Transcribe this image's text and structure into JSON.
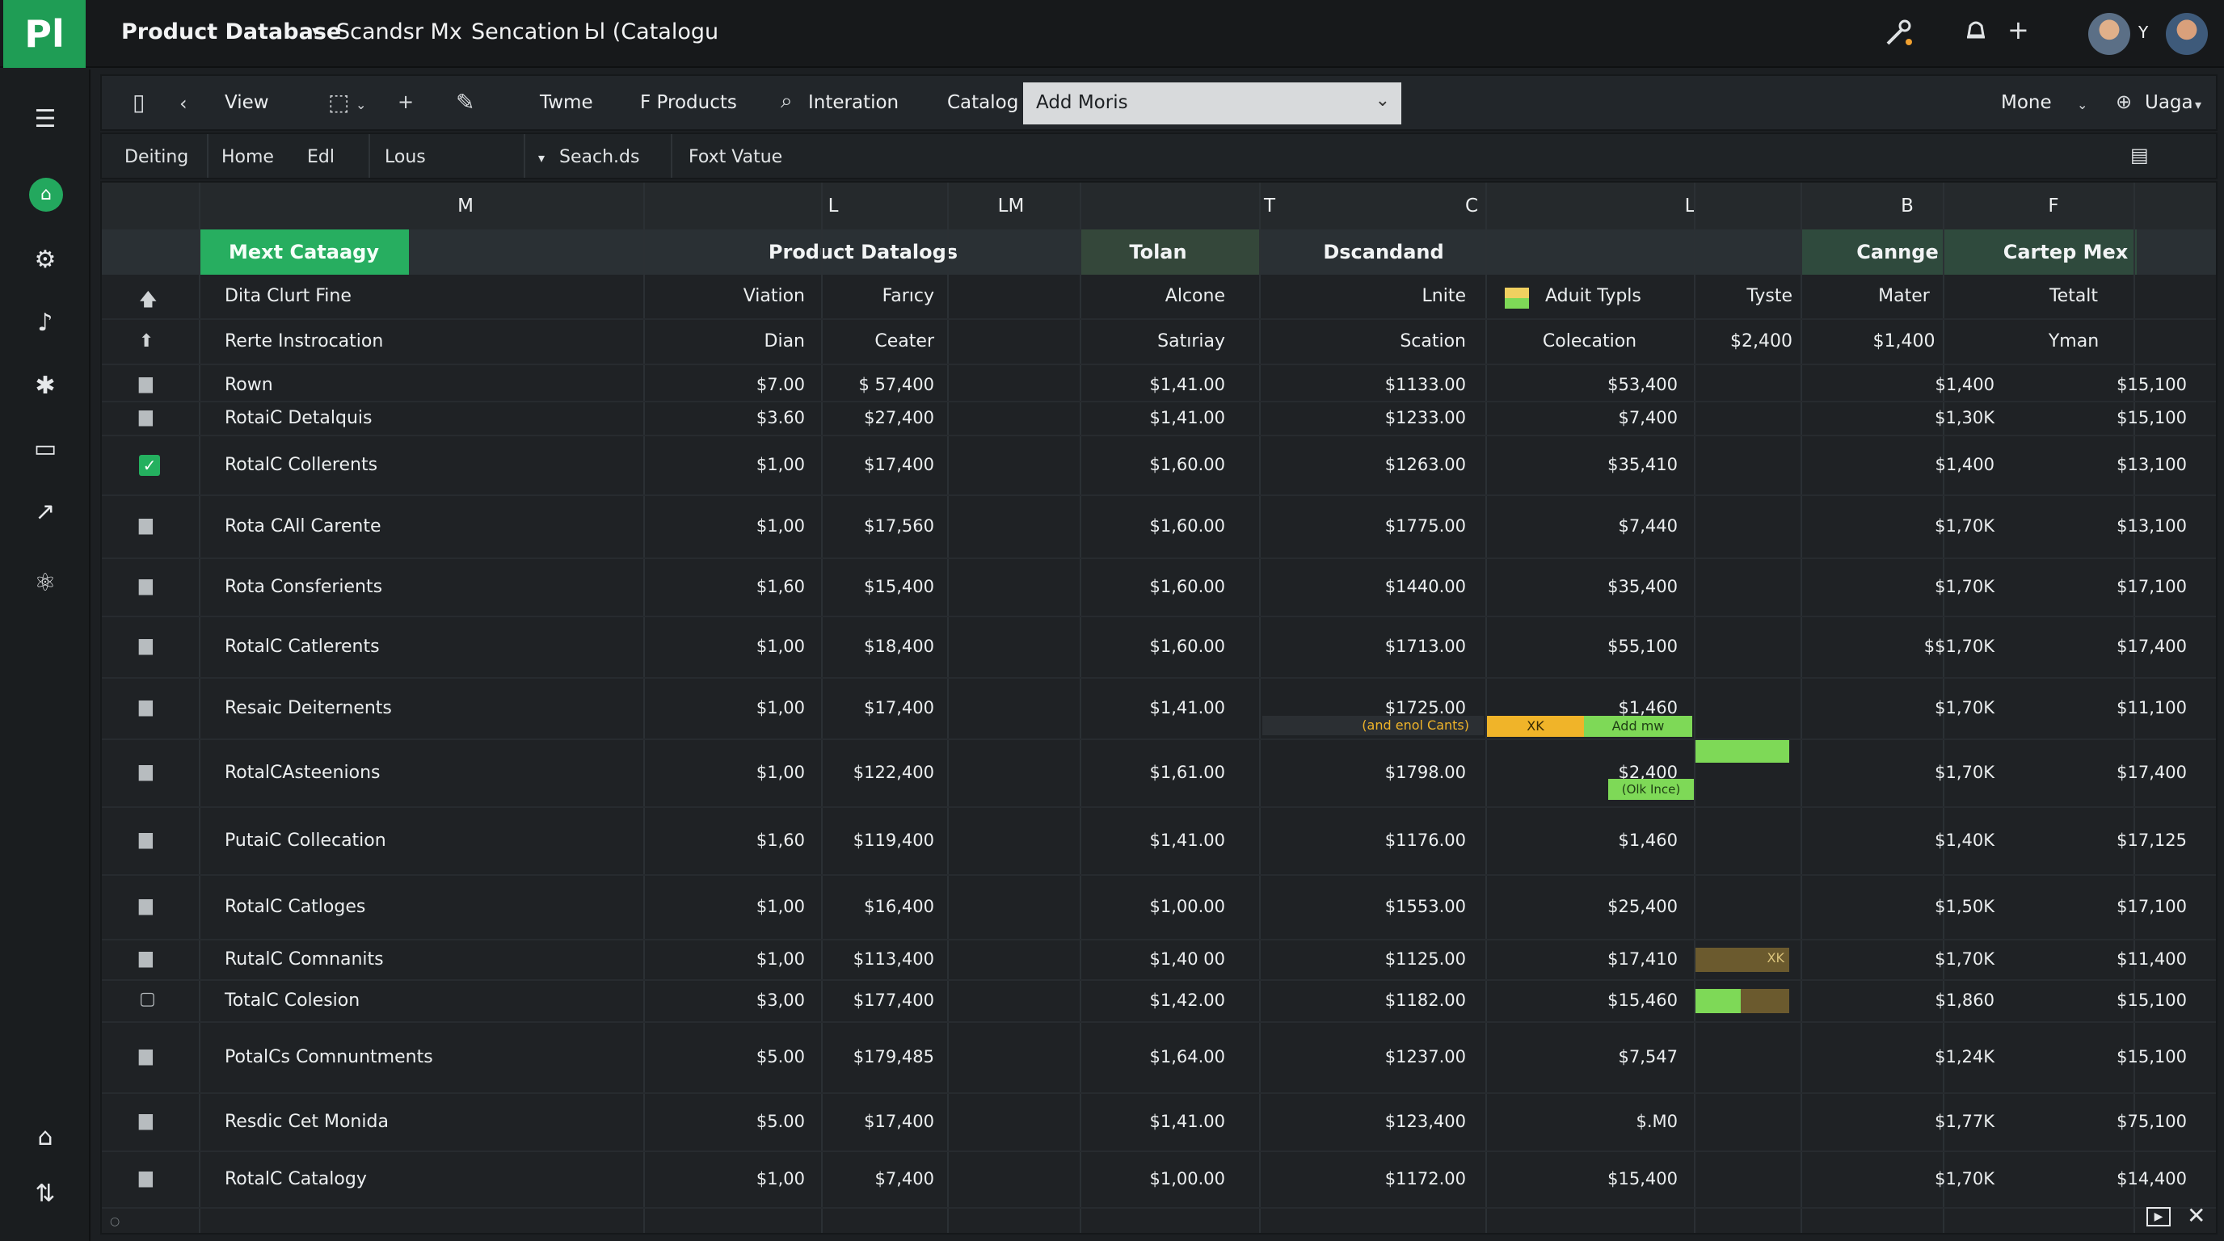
{
  "app": {
    "logo": "Pl",
    "title_items": [
      "Product Database",
      "Scandsr Mx",
      "Sencation",
      "Ꮟl (Catalogu"
    ],
    "title_dropdown_icon": "caret-down-icon"
  },
  "top_right": {
    "icons": [
      "tools-icon",
      "bell-icon",
      "plus-icon"
    ],
    "avatar_caret": "Y"
  },
  "toolbar": {
    "view": "View",
    "twme": "Twme",
    "fproducts": "F Products",
    "interation": "Interation",
    "catalog_label": "Catalog",
    "catalog_value": "Add Moris",
    "mone": "Mone",
    "uaga": "Uaga"
  },
  "subnav": {
    "items": [
      "Deiting",
      "Home",
      "Edl",
      "Lous",
      "Seach.ds",
      "Foxt Vatue"
    ]
  },
  "columns": {
    "letters": [
      "M",
      "L",
      "LM",
      "T",
      "C",
      "L",
      "B",
      "F"
    ]
  },
  "groups": {
    "g1": "Mext Cataagy",
    "g2": "Product Datalogs",
    "g3": "Tolan",
    "g4": "Dscandand",
    "g5": "Cannge",
    "g6": "Cartep Mex"
  },
  "subheaders": [
    {
      "name": "Dita Clurt Fine",
      "c1": "Viation",
      "c2": "Farıcy",
      "c3": "Alcone",
      "c4": "Lnite",
      "c5": "Aduit Typls",
      "c6": "Tyste",
      "c7": "Mater",
      "c8": "Tetalt"
    },
    {
      "name": "Rerte Instrocation",
      "c1": "Dian",
      "c2": "Ceater",
      "c3": "Satıriay",
      "c4": "Scation",
      "c5": "Colecation",
      "c6": "$2,400",
      "c7": "$1,400",
      "c8": "Yman"
    }
  ],
  "rows": [
    {
      "name": "Rown",
      "c1": "$7.00",
      "c2": "$ 57,400",
      "c3": "$1,41.00",
      "c4": "$1133.00",
      "c5": "$53,400",
      "c7": "$1,400",
      "c8": "$15,100"
    },
    {
      "name": "RotaiC Detalquis",
      "c1": "$3.60",
      "c2": "$27,400",
      "c3": "$1,41.00",
      "c4": "$1233.00",
      "c5": "$7,400",
      "c7": "$1,30K",
      "c8": "$15,100"
    },
    {
      "name": "RotalC Collerents",
      "c1": "$1,00",
      "c2": "$17,400",
      "c3": "$1,60.00",
      "c4": "$1263.00",
      "c5": "$35,410",
      "c7": "$1,400",
      "c8": "$13,100"
    },
    {
      "name": "Rota CAll Carente",
      "c1": "$1,00",
      "c2": "$17,560",
      "c3": "$1,60.00",
      "c4": "$1775.00",
      "c5": "$7,440",
      "c7": "$1,70K",
      "c8": "$13,100"
    },
    {
      "name": "Rota Consferients",
      "c1": "$1,60",
      "c2": "$15,400",
      "c3": "$1,60.00",
      "c4": "$1440.00",
      "c5": "$35,400",
      "c7": "$1,70K",
      "c8": "$17,100"
    },
    {
      "name": "RotalC Catlerents",
      "c1": "$1,00",
      "c2": "$18,400",
      "c3": "$1,60.00",
      "c4": "$1713.00",
      "c5": "$55,100",
      "c7": "$$1,70K",
      "c8": "$17,400"
    },
    {
      "name": "Resaic Deiternents",
      "c1": "$1,00",
      "c2": "$17,400",
      "c3": "$1,41.00",
      "c4": "$1725.00",
      "c4b": "(and enol Cants)",
      "c5": "$1,460",
      "m1": "XK",
      "m2": "Add mw",
      "c7": "$1,70K",
      "c8": "$11,100"
    },
    {
      "name": "RotalCAsteenions",
      "c1": "$1,00",
      "c2": "$122,400",
      "c3": "$1,61.00",
      "c4": "$1798.00",
      "c5": "$2,400",
      "c5b": "(Olk Ince)",
      "c7": "$1,70K",
      "c8": "$17,400"
    },
    {
      "name": "PutaiC Collecation",
      "c1": "$1,60",
      "c2": "$119,400",
      "c3": "$1,41.00",
      "c4": "$1176.00",
      "c5": "$1,460",
      "c7": "$1,40K",
      "c8": "$17,125"
    },
    {
      "name": "RotalC Catloges",
      "c1": "$1,00",
      "c2": "$16,400",
      "c3": "$1,00.00",
      "c4": "$1553.00",
      "c5": "$25,400",
      "c7": "$1,50K",
      "c8": "$17,100"
    },
    {
      "name": "RutalC Comnanits",
      "c1": "$1,00",
      "c2": "$113,400",
      "c3": "$1,40 00",
      "c4": "$1125.00",
      "c5": "$17,410",
      "m3": "XK",
      "c7": "$1,70K",
      "c8": "$11,400"
    },
    {
      "name": "TotalC Colesion",
      "c1": "$3,00",
      "c2": "$177,400",
      "c3": "$1,42.00",
      "c4": "$1182.00",
      "c5": "$15,460",
      "c7": "$1,860",
      "c8": "$15,100"
    },
    {
      "name": "PotalCs Comnuntments",
      "c1": "$5.00",
      "c2": "$179,485",
      "c3": "$1,64.00",
      "c4": "$1237.00",
      "c5": "$7,547",
      "c7": "$1,24K",
      "c8": "$15,100"
    },
    {
      "name": "Resdic Cet Monida",
      "c1": "$5.00",
      "c2": "$17,400",
      "c3": "$1,41.00",
      "c4": "$123,400",
      "c5": "$.M0",
      "c7": "$1,77K",
      "c8": "$75,100"
    },
    {
      "name": "RotalC Catalogy",
      "c1": "$1,00",
      "c2": "$7,400",
      "c3": "$1,00.00",
      "c4": "$1172.00",
      "c5": "$15,400",
      "c7": "$1,70K",
      "c8": "$14,400"
    }
  ],
  "colors": {
    "accent": "#1f9d55",
    "accent_light": "#7ed957",
    "warning": "#f0b429",
    "brown": "#6b5a2e"
  }
}
